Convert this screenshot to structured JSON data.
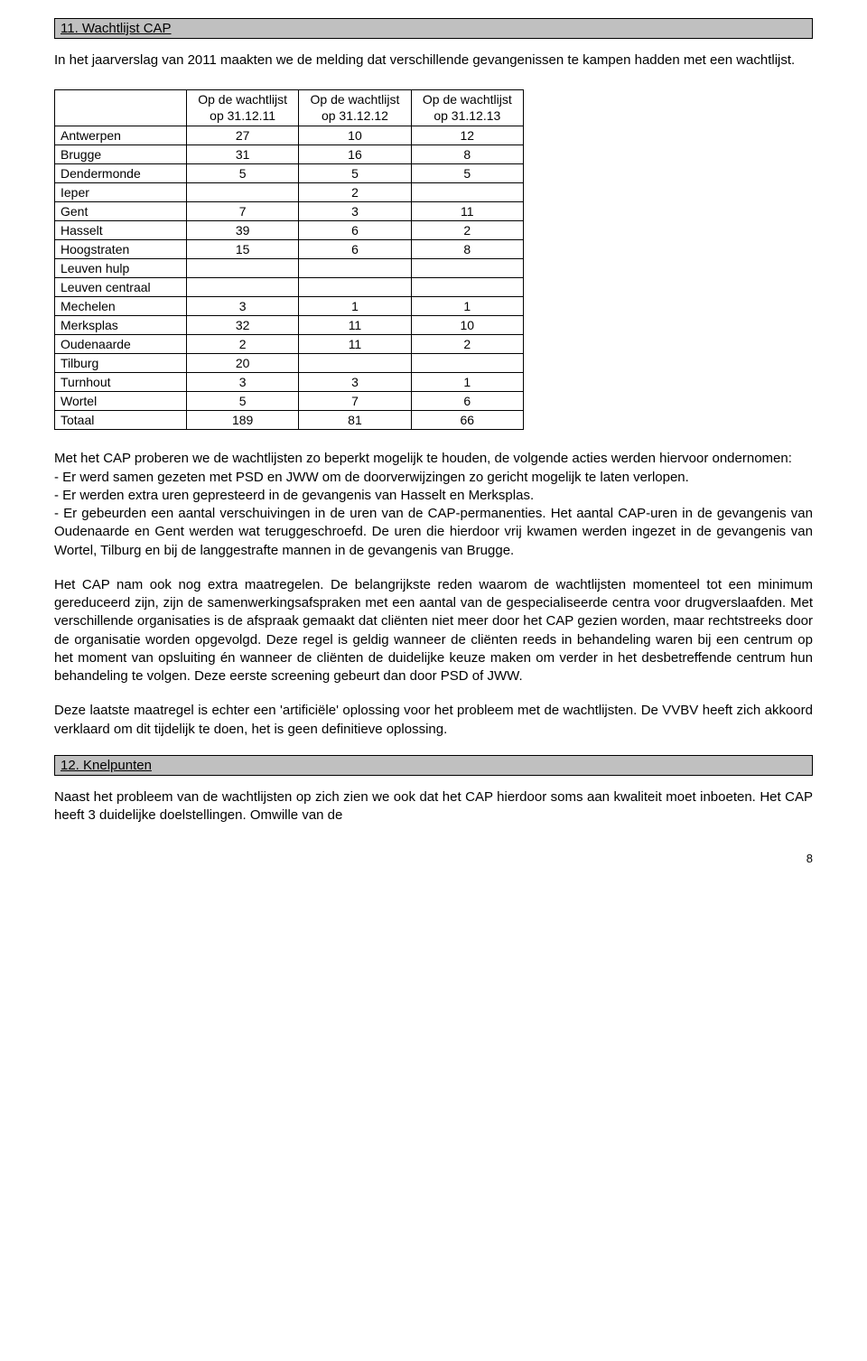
{
  "section11": {
    "title": "11. Wachtlijst CAP"
  },
  "intro": "In het jaarverslag van 2011 maakten we de melding dat verschillende gevangenissen te kampen hadden met een wachtlijst.",
  "tableHeaders": {
    "h1a": "Op de wachtlijst",
    "h1b": "op 31.12.11",
    "h2a": "Op de wachtlijst",
    "h2b": "op 31.12.12",
    "h3a": "Op de wachtlijst",
    "h3b": "op 31.12.13"
  },
  "rows": {
    "r0": {
      "label": "Antwerpen",
      "c1": "27",
      "c2": "10",
      "c3": "12"
    },
    "r1": {
      "label": "Brugge",
      "c1": "31",
      "c2": "16",
      "c3": "8"
    },
    "r2": {
      "label": "Dendermonde",
      "c1": "5",
      "c2": "5",
      "c3": "5"
    },
    "r3": {
      "label": "Ieper",
      "c1": "",
      "c2": "2",
      "c3": ""
    },
    "r4": {
      "label": "Gent",
      "c1": "7",
      "c2": "3",
      "c3": "11"
    },
    "r5": {
      "label": "Hasselt",
      "c1": "39",
      "c2": "6",
      "c3": "2"
    },
    "r6": {
      "label": "Hoogstraten",
      "c1": "15",
      "c2": "6",
      "c3": "8"
    },
    "r7": {
      "label": "Leuven hulp",
      "c1": "",
      "c2": "",
      "c3": ""
    },
    "r8": {
      "label": "Leuven centraal",
      "c1": "",
      "c2": "",
      "c3": ""
    },
    "r9": {
      "label": "Mechelen",
      "c1": "3",
      "c2": "1",
      "c3": "1"
    },
    "r10": {
      "label": "Merksplas",
      "c1": "32",
      "c2": "11",
      "c3": "10"
    },
    "r11": {
      "label": "Oudenaarde",
      "c1": "2",
      "c2": "11",
      "c3": "2"
    },
    "r12": {
      "label": "Tilburg",
      "c1": "20",
      "c2": "",
      "c3": ""
    },
    "r13": {
      "label": "Turnhout",
      "c1": "3",
      "c2": "3",
      "c3": "1"
    },
    "r14": {
      "label": "Wortel",
      "c1": "5",
      "c2": "7",
      "c3": "6"
    },
    "r15": {
      "label": "Totaal",
      "c1": "189",
      "c2": "81",
      "c3": "66"
    }
  },
  "bulletIntro": "Met het CAP proberen we de wachtlijsten zo beperkt mogelijk te houden, de volgende acties werden hiervoor ondernomen:",
  "bullets": {
    "b1": "- Er werd samen gezeten met PSD en JWW om de doorverwijzingen zo gericht mogelijk te laten verlopen.",
    "b2": "- Er werden extra uren gepresteerd in de gevangenis van Hasselt en Merksplas.",
    "b3": "- Er gebeurden een aantal verschuivingen in de uren van de CAP-permanenties.  Het aantal CAP-uren in de gevangenis van Oudenaarde en Gent werden wat teruggeschroefd.  De uren die hierdoor vrij kwamen werden ingezet in de gevangenis van Wortel, Tilburg en bij de langgestrafte mannen in de gevangenis van Brugge."
  },
  "para2": "Het CAP nam ook nog extra maatregelen.  De belangrijkste reden waarom de wachtlijsten momenteel tot een minimum gereduceerd zijn, zijn de samenwerkingsafspraken met een aantal van de gespecialiseerde centra voor drugverslaafden.  Met verschillende organisaties is de afspraak gemaakt dat cliënten niet meer door het CAP gezien worden, maar rechtstreeks door de organisatie worden opgevolgd.  Deze regel is geldig wanneer de cliënten reeds in behandeling waren bij een centrum op het moment van opsluiting én wanneer de cliënten de duidelijke keuze maken om verder in het desbetreffende centrum hun behandeling te volgen.  Deze eerste screening gebeurt dan door PSD of JWW.",
  "para3": "Deze laatste maatregel is echter een 'artificiële' oplossing voor het probleem met de wachtlijsten.  De VVBV heeft zich akkoord verklaard om dit tijdelijk te doen, het is geen definitieve oplossing.",
  "section12": {
    "title": "12. Knelpunten"
  },
  "para4": "Naast het probleem van de wachtlijsten op zich zien we ook dat het CAP hierdoor soms aan kwaliteit moet inboeten.  Het CAP heeft 3 duidelijke doelstellingen.  Omwille van de",
  "pageNumber": "8"
}
